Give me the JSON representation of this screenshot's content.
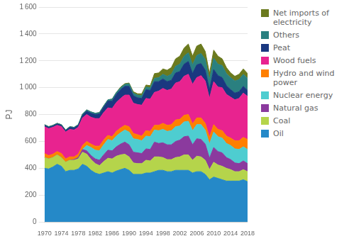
{
  "chart_data": {
    "type": "stacked_area",
    "ylabel": "PJ",
    "x": [
      1970,
      1971,
      1972,
      1973,
      1974,
      1975,
      1976,
      1977,
      1978,
      1979,
      1980,
      1981,
      1982,
      1983,
      1984,
      1985,
      1986,
      1987,
      1988,
      1989,
      1990,
      1991,
      1992,
      1993,
      1994,
      1995,
      1996,
      1997,
      1998,
      1999,
      2000,
      2001,
      2002,
      2003,
      2004,
      2005,
      2006,
      2007,
      2008,
      2009,
      2010,
      2011,
      2012,
      2013,
      2014,
      2015,
      2016,
      2017,
      2018
    ],
    "series": [
      {
        "name": "Oil",
        "color": "#2589c8",
        "values": [
          400,
          395,
          410,
          430,
          415,
          375,
          385,
          385,
          395,
          430,
          415,
          385,
          365,
          355,
          365,
          375,
          365,
          380,
          390,
          400,
          385,
          355,
          355,
          355,
          365,
          365,
          375,
          385,
          385,
          375,
          375,
          385,
          385,
          385,
          385,
          365,
          375,
          375,
          355,
          315,
          335,
          325,
          315,
          305,
          305,
          305,
          305,
          315,
          300
        ]
      },
      {
        "name": "Coal",
        "color": "#b5d44b",
        "values": [
          80,
          75,
          70,
          70,
          65,
          70,
          75,
          75,
          75,
          90,
          90,
          80,
          70,
          65,
          85,
          100,
          105,
          110,
          110,
          105,
          100,
          85,
          80,
          80,
          95,
          90,
          110,
          100,
          95,
          90,
          90,
          95,
          100,
          115,
          115,
          95,
          115,
          110,
          105,
          75,
          110,
          100,
          100,
          95,
          85,
          70,
          70,
          75,
          75
        ]
      },
      {
        "name": "Natural gas",
        "color": "#8b3a9e",
        "values": [
          0,
          0,
          0,
          0,
          0,
          0,
          0,
          5,
          10,
          20,
          25,
          30,
          35,
          40,
          50,
          60,
          60,
          70,
          80,
          90,
          90,
          80,
          80,
          75,
          85,
          85,
          110,
          100,
          110,
          110,
          110,
          120,
          125,
          135,
          140,
          115,
          130,
          130,
          120,
          85,
          110,
          100,
          100,
          80,
          75,
          65,
          60,
          65,
          60
        ]
      },
      {
        "name": "Nuclear energy",
        "color": "#4ecdd0",
        "values": [
          0,
          0,
          0,
          0,
          0,
          0,
          0,
          0,
          0,
          0,
          40,
          60,
          65,
          70,
          75,
          80,
          75,
          80,
          85,
          90,
          95,
          100,
          100,
          95,
          95,
          95,
          90,
          95,
          100,
          100,
          105,
          110,
          105,
          110,
          110,
          105,
          105,
          110,
          105,
          105,
          115,
          110,
          110,
          105,
          105,
          105,
          105,
          105,
          105
        ]
      },
      {
        "name": "Hydro and wind\npower",
        "color": "#ff7f00",
        "values": [
          30,
          25,
          25,
          25,
          30,
          25,
          25,
          20,
          25,
          30,
          30,
          25,
          30,
          35,
          35,
          30,
          30,
          35,
          35,
          35,
          40,
          40,
          35,
          35,
          40,
          40,
          35,
          40,
          45,
          45,
          45,
          50,
          50,
          50,
          50,
          50,
          50,
          50,
          50,
          50,
          55,
          55,
          55,
          55,
          55,
          60,
          65,
          70,
          75
        ]
      },
      {
        "name": "Wood fuels",
        "color": "#e8238f",
        "values": [
          200,
          200,
          200,
          195,
          200,
          200,
          205,
          200,
          200,
          205,
          200,
          200,
          205,
          205,
          205,
          205,
          210,
          215,
          220,
          225,
          235,
          225,
          225,
          230,
          240,
          240,
          245,
          255,
          260,
          260,
          265,
          275,
          280,
          290,
          300,
          295,
          300,
          315,
          315,
          290,
          320,
          315,
          320,
          310,
          305,
          305,
          315,
          330,
          320
        ]
      },
      {
        "name": "Peat",
        "color": "#1a3880",
        "values": [
          10,
          10,
          10,
          10,
          10,
          10,
          15,
          15,
          15,
          20,
          25,
          30,
          30,
          35,
          40,
          50,
          55,
          60,
          65,
          65,
          65,
          55,
          50,
          50,
          65,
          65,
          80,
          70,
          70,
          65,
          65,
          75,
          75,
          90,
          95,
          80,
          95,
          90,
          80,
          65,
          90,
          85,
          75,
          65,
          55,
          50,
          50,
          50,
          45
        ]
      },
      {
        "name": "Others",
        "color": "#2a8080",
        "values": [
          5,
          5,
          5,
          5,
          5,
          5,
          5,
          5,
          5,
          10,
          10,
          10,
          10,
          10,
          10,
          10,
          15,
          15,
          15,
          15,
          20,
          20,
          20,
          20,
          20,
          20,
          25,
          30,
          35,
          40,
          45,
          50,
          55,
          60,
          65,
          65,
          70,
          75,
          80,
          75,
          85,
          85,
          90,
          90,
          90,
          90,
          90,
          90,
          90
        ]
      },
      {
        "name": "Net imports of\nelectricity",
        "color": "#6b7a1e",
        "values": [
          0,
          0,
          0,
          0,
          0,
          0,
          0,
          0,
          0,
          0,
          0,
          0,
          0,
          0,
          0,
          0,
          0,
          0,
          5,
          5,
          5,
          10,
          10,
          15,
          15,
          15,
          35,
          35,
          40,
          45,
          50,
          55,
          60,
          60,
          65,
          65,
          70,
          70,
          60,
          45,
          60,
          60,
          50,
          45,
          35,
          35,
          40,
          40,
          35
        ]
      }
    ],
    "xlim": [
      1970,
      2018
    ],
    "xticks": [
      1970,
      1974,
      1978,
      1982,
      1986,
      1990,
      1994,
      1998,
      2002,
      2006,
      2010,
      2014,
      2018
    ],
    "ylim": [
      0,
      1600
    ],
    "yticks": [
      0,
      200,
      400,
      600,
      800,
      {
        "value": 1000,
        "label": "1 000"
      },
      {
        "value": 1200,
        "label": "1 200"
      },
      {
        "value": 1400,
        "label": "1 400"
      },
      {
        "value": 1600,
        "label": "1 600"
      }
    ],
    "stacked": true,
    "grid": true,
    "legend": "right"
  }
}
